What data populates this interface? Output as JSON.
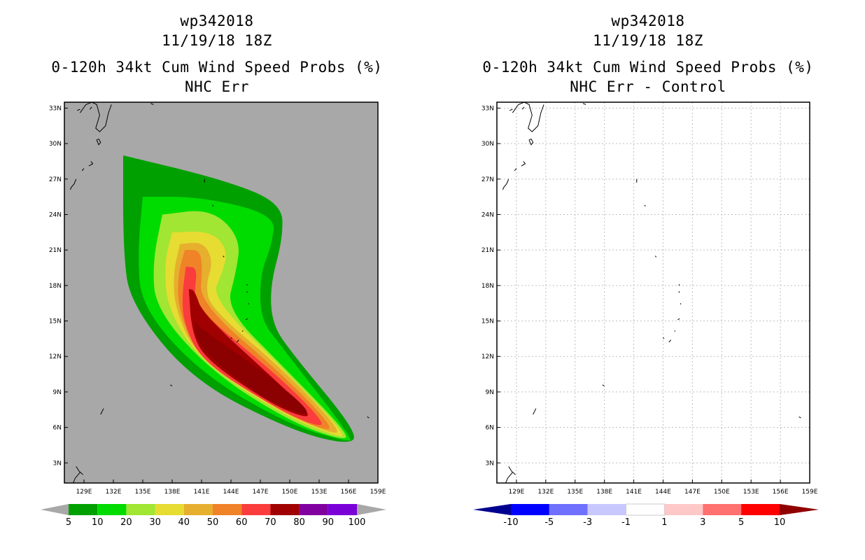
{
  "chart_data": [
    {
      "type": "heatmap",
      "storm_id": "wp342018",
      "datetime": "11/19/18 18Z",
      "title": "0-120h 34kt Cum Wind Speed Probs (%)",
      "subtitle": "NHC Err",
      "x_ticks": [
        "129E",
        "132E",
        "135E",
        "138E",
        "141E",
        "144E",
        "147E",
        "150E",
        "153E",
        "156E",
        "159E"
      ],
      "y_ticks": [
        "3N",
        "6N",
        "9N",
        "12N",
        "15N",
        "18N",
        "21N",
        "24N",
        "27N",
        "30N",
        "33N"
      ],
      "xlim": [
        127.0,
        159.0
      ],
      "ylim": [
        1.3,
        33.5
      ],
      "colorbar": {
        "levels": [
          "5",
          "10",
          "20",
          "30",
          "40",
          "50",
          "60",
          "70",
          "80",
          "90",
          "100"
        ],
        "colors": [
          "#00a000",
          "#00dc00",
          "#a0e632",
          "#e6dc32",
          "#e6af2d",
          "#f08228",
          "#fa3c3c",
          "#a00000",
          "#8000a0",
          "#7a00d8"
        ]
      },
      "contour_levels": [
        {
          "min": 5,
          "color": "#00a000",
          "path": [
            [
              133,
              29
            ],
            [
              143,
              27
            ],
            [
              149.2,
              25
            ],
            [
              149.3,
              22
            ],
            [
              148,
              18
            ],
            [
              148.2,
              14.8
            ],
            [
              150,
              12.5
            ],
            [
              157,
              5.5
            ],
            [
              156,
              4.5
            ],
            [
              150,
              5.8
            ],
            [
              140,
              10
            ],
            [
              133.7,
              16.5
            ],
            [
              133,
              21
            ],
            [
              133,
              29
            ]
          ]
        },
        {
          "min": 10,
          "color": "#00dc00",
          "path": [
            [
              135,
              25.5
            ],
            [
              141,
              25.5
            ],
            [
              148.5,
              24
            ],
            [
              148.2,
              21.5
            ],
            [
              147,
              19
            ],
            [
              147,
              15.2
            ],
            [
              149,
              13
            ],
            [
              156.5,
              5
            ],
            [
              155.8,
              4.8
            ],
            [
              150,
              6.2
            ],
            [
              141,
              10.5
            ],
            [
              134.8,
              16.2
            ],
            [
              134.5,
              21
            ],
            [
              135,
              25.5
            ]
          ]
        },
        {
          "min": 20,
          "color": "#a0e632",
          "path": [
            [
              137,
              24
            ],
            [
              142,
              24.5
            ],
            [
              145,
              22
            ],
            [
              144.5,
              19
            ],
            [
              143.5,
              16
            ],
            [
              149.5,
              11
            ],
            [
              156.3,
              5.2
            ],
            [
              155,
              5
            ],
            [
              150,
              6.5
            ],
            [
              142,
              10.7
            ],
            [
              136.3,
              16
            ],
            [
              136,
              20
            ],
            [
              137,
              24
            ]
          ]
        },
        {
          "min": 30,
          "color": "#e6dc32",
          "path": [
            [
              138,
              22.5
            ],
            [
              142,
              22.6
            ],
            [
              143.7,
              21
            ],
            [
              143.1,
              19
            ],
            [
              142,
              17
            ],
            [
              149.5,
              10.8
            ],
            [
              156,
              5.2
            ],
            [
              154.5,
              5.3
            ],
            [
              149.5,
              7
            ],
            [
              141,
              11.5
            ],
            [
              137.5,
              16
            ],
            [
              137.2,
              20
            ],
            [
              138,
              22.5
            ]
          ]
        },
        {
          "min": 40,
          "color": "#e6af2d",
          "path": [
            [
              138.8,
              21.5
            ],
            [
              141.2,
              21.7
            ],
            [
              142.2,
              20
            ],
            [
              141.4,
              18
            ],
            [
              142,
              16
            ],
            [
              149.6,
              10.7
            ],
            [
              155.5,
              5.5
            ],
            [
              153.8,
              5.6
            ],
            [
              149,
              7.4
            ],
            [
              140.5,
              12
            ],
            [
              138.3,
              16
            ],
            [
              138.1,
              19
            ],
            [
              138.8,
              21.5
            ]
          ]
        },
        {
          "min": 50,
          "color": "#f08228",
          "path": [
            [
              139.3,
              21
            ],
            [
              140.8,
              21
            ],
            [
              141.1,
              19.5
            ],
            [
              140.8,
              16.5
            ],
            [
              149.5,
              10.3
            ],
            [
              154.7,
              5.8
            ],
            [
              153,
              5.9
            ],
            [
              148.5,
              7.6
            ],
            [
              140.6,
              12
            ],
            [
              138.6,
              16
            ],
            [
              138.6,
              19
            ],
            [
              139.3,
              21
            ]
          ]
        },
        {
          "min": 60,
          "color": "#fa3c3c",
          "path": [
            [
              139.4,
              19.6
            ],
            [
              140.6,
              19.5
            ],
            [
              140.2,
              17
            ],
            [
              141,
              15.7
            ],
            [
              149.2,
              10.1
            ],
            [
              153.8,
              6.2
            ],
            [
              152.3,
              6.2
            ],
            [
              148,
              7.9
            ],
            [
              141,
              11.6
            ],
            [
              139.2,
              14.8
            ],
            [
              139,
              17
            ],
            [
              139.4,
              19.6
            ]
          ]
        },
        {
          "min": 80,
          "color": "#a00000",
          "path": [
            [
              139.7,
              17.7
            ],
            [
              140.3,
              17.6
            ],
            [
              141.1,
              15.6
            ],
            [
              148.8,
              9.8
            ],
            [
              152.4,
              6.9
            ],
            [
              150.8,
              7
            ],
            [
              147.5,
              8.3
            ],
            [
              141.5,
              11.7
            ],
            [
              140,
              14
            ],
            [
              139.7,
              17.7
            ]
          ]
        },
        {
          "min": 90,
          "color": "#8b0000",
          "path": [
            [
              140.3,
              15
            ],
            [
              141,
              14.3
            ],
            [
              148,
              10.3
            ],
            [
              152.2,
              7.3
            ],
            [
              151,
              7.1
            ],
            [
              147.3,
              8.5
            ],
            [
              141.8,
              11.9
            ],
            [
              140.3,
              13.8
            ],
            [
              140.3,
              15
            ]
          ]
        }
      ]
    },
    {
      "type": "heatmap",
      "storm_id": "wp342018",
      "datetime": "11/19/18 18Z",
      "title": "0-120h 34kt Cum Wind Speed Probs (%)",
      "subtitle": "NHC Err - Control",
      "x_ticks": [
        "129E",
        "132E",
        "135E",
        "138E",
        "141E",
        "144E",
        "147E",
        "150E",
        "153E",
        "156E",
        "159E"
      ],
      "y_ticks": [
        "3N",
        "6N",
        "9N",
        "12N",
        "15N",
        "18N",
        "21N",
        "24N",
        "27N",
        "30N",
        "33N"
      ],
      "xlim": [
        127.0,
        159.0
      ],
      "ylim": [
        1.3,
        33.5
      ],
      "grid": true,
      "colorbar": {
        "levels": [
          "-10",
          "-5",
          "-3",
          "-1",
          "1",
          "3",
          "5",
          "10"
        ],
        "colors": [
          "#000090",
          "#0000ff",
          "#7070ff",
          "#c8c8ff",
          "#ffffff",
          "#ffc8c8",
          "#ff7070",
          "#ff0000",
          "#900000"
        ]
      },
      "field_values_all_within": [
        -1,
        1
      ]
    }
  ]
}
